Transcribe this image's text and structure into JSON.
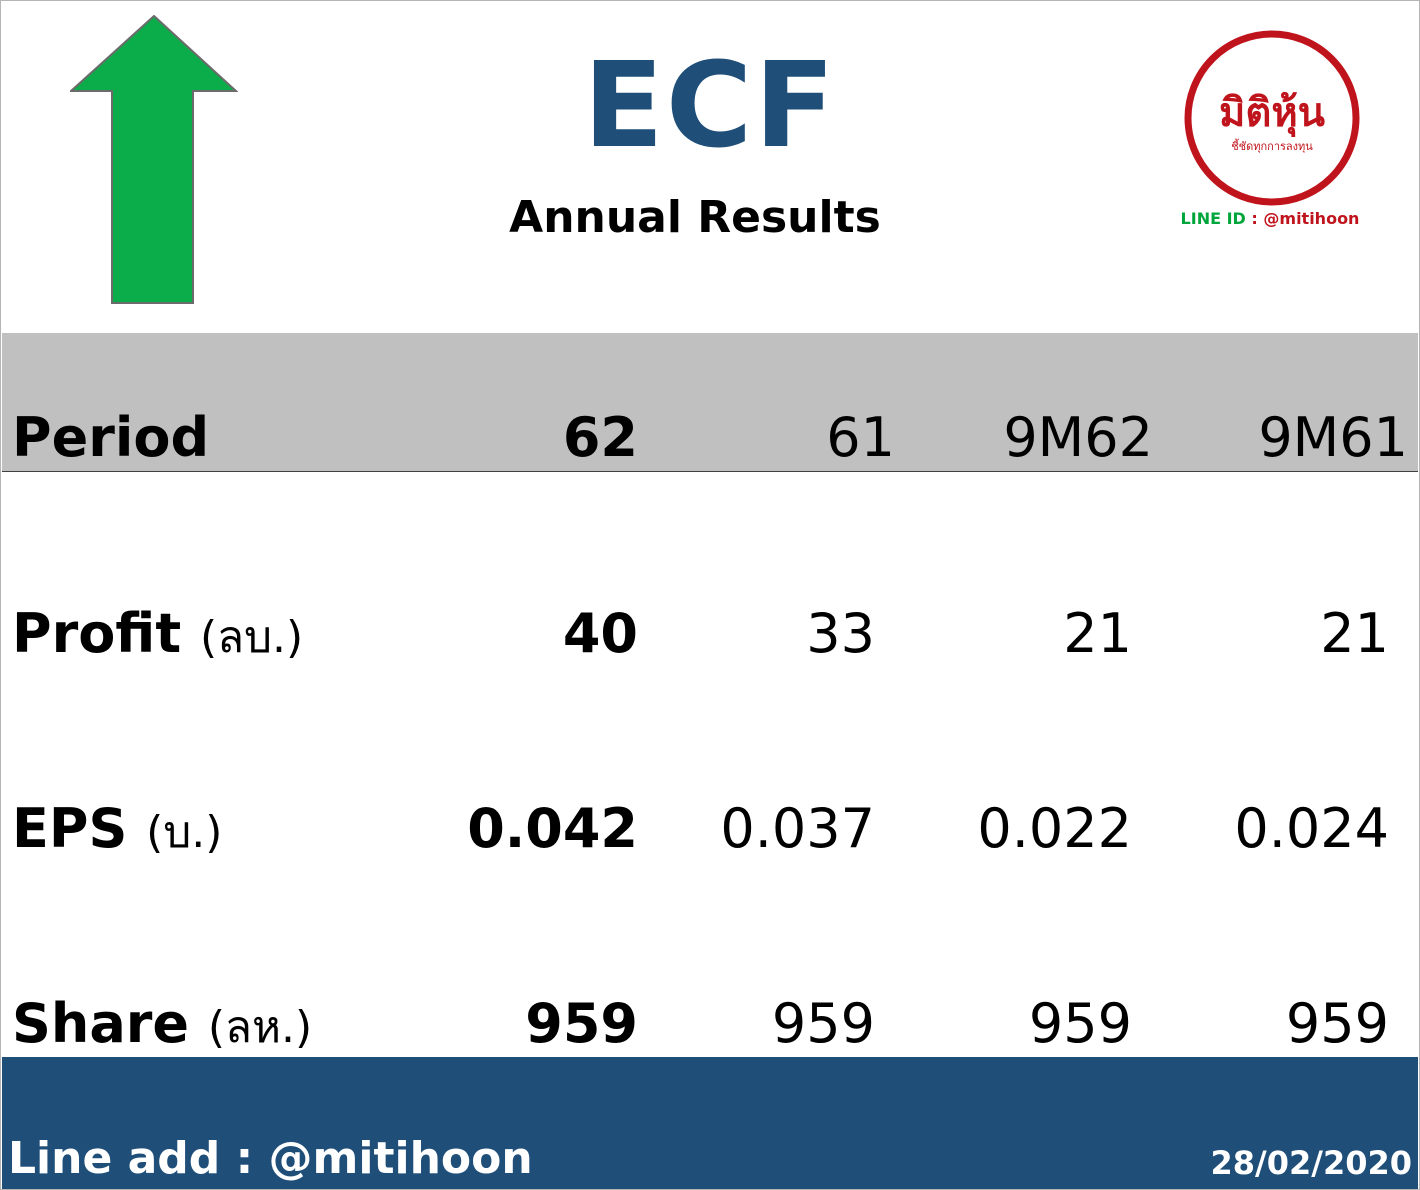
{
  "header": {
    "ticker": "ECF",
    "subtitle": "Annual Results",
    "trend_icon": "up-arrow-icon",
    "trend_color": "#0bac4a",
    "accent_color": "#1f4e79"
  },
  "logo": {
    "brand_text": "มิติหุ้น",
    "brand_tagline": "ชี้ชัดทุกการลงทุน",
    "line_label": "LINE ID",
    "line_sep": ":",
    "line_id": "@mitihoon"
  },
  "table": {
    "period": {
      "label": "Period",
      "unit": "",
      "values": [
        "62",
        "61",
        "9M62",
        "9M61"
      ]
    },
    "rows": [
      {
        "label": "Profit",
        "unit": "(ลบ.)",
        "values": [
          "40",
          "33",
          "21",
          "21"
        ]
      },
      {
        "label": "EPS",
        "unit": "(บ.)",
        "values": [
          "0.042",
          "0.037",
          "0.022",
          "0.024"
        ]
      },
      {
        "label": "Share",
        "unit": "(ลห.)",
        "values": [
          "959",
          "959",
          "959",
          "959"
        ]
      }
    ]
  },
  "footer": {
    "line_add": "Line add : @mitihoon",
    "date": "28/02/2020"
  }
}
